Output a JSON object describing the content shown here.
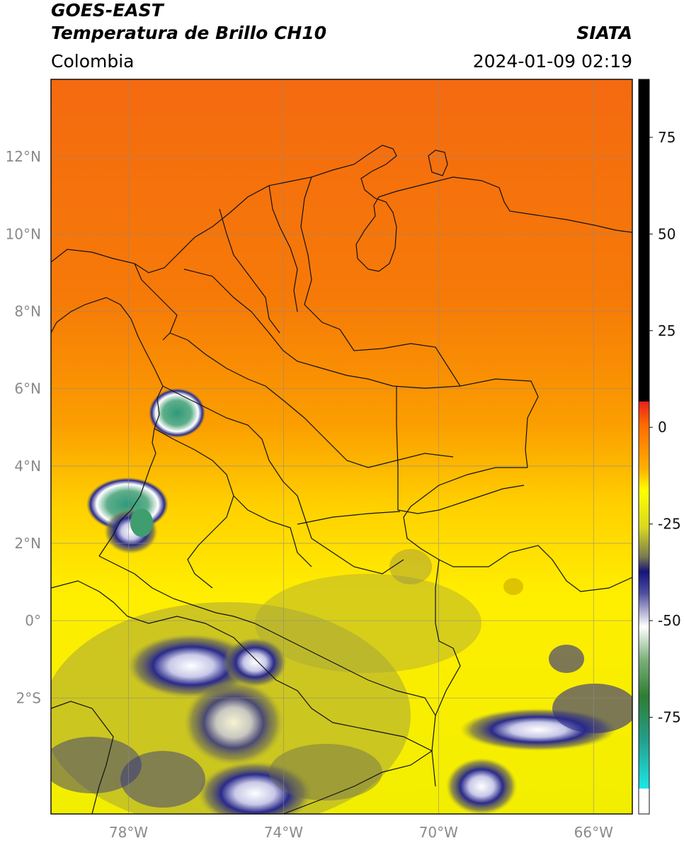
{
  "header": {
    "satellite": "GOES-EAST",
    "product": "Temperatura de Brillo CH10",
    "region": "Colombia",
    "brand": "SIATA",
    "datetime": "2024-01-09 02:19"
  },
  "map": {
    "lon_range": [
      -80,
      -65
    ],
    "lat_range": [
      -5,
      14
    ],
    "lat_ticks": [
      {
        "value": 12,
        "label": "12°N"
      },
      {
        "value": 10,
        "label": "10°N"
      },
      {
        "value": 8,
        "label": "8°N"
      },
      {
        "value": 6,
        "label": "6°N"
      },
      {
        "value": 4,
        "label": "4°N"
      },
      {
        "value": 2,
        "label": "2°N"
      },
      {
        "value": 0,
        "label": "0°"
      },
      {
        "value": -2,
        "label": "2°S"
      }
    ],
    "lon_ticks": [
      {
        "value": -78,
        "label": "78°W"
      },
      {
        "value": -74,
        "label": "74°W"
      },
      {
        "value": -70,
        "label": "70°W"
      },
      {
        "value": -66,
        "label": "66°W"
      }
    ],
    "grid": true
  },
  "colorbar": {
    "range": [
      -100,
      90
    ],
    "ticks": [
      {
        "value": 75,
        "label": "75"
      },
      {
        "value": 50,
        "label": "50"
      },
      {
        "value": 25,
        "label": "25"
      },
      {
        "value": 0,
        "label": "0"
      },
      {
        "value": -25,
        "label": "-25"
      },
      {
        "value": -50,
        "label": "-50"
      },
      {
        "value": -75,
        "label": "-75"
      }
    ],
    "colors": {
      "black": "#000000",
      "red": "#e8231a",
      "orange": "#ff8c00",
      "yellow": "#ffff00",
      "olive": "#8c8c3c",
      "navy": "#14147a",
      "white": "#ffffff",
      "green": "#2e7d32",
      "cyan": "#1ce6e6"
    }
  }
}
